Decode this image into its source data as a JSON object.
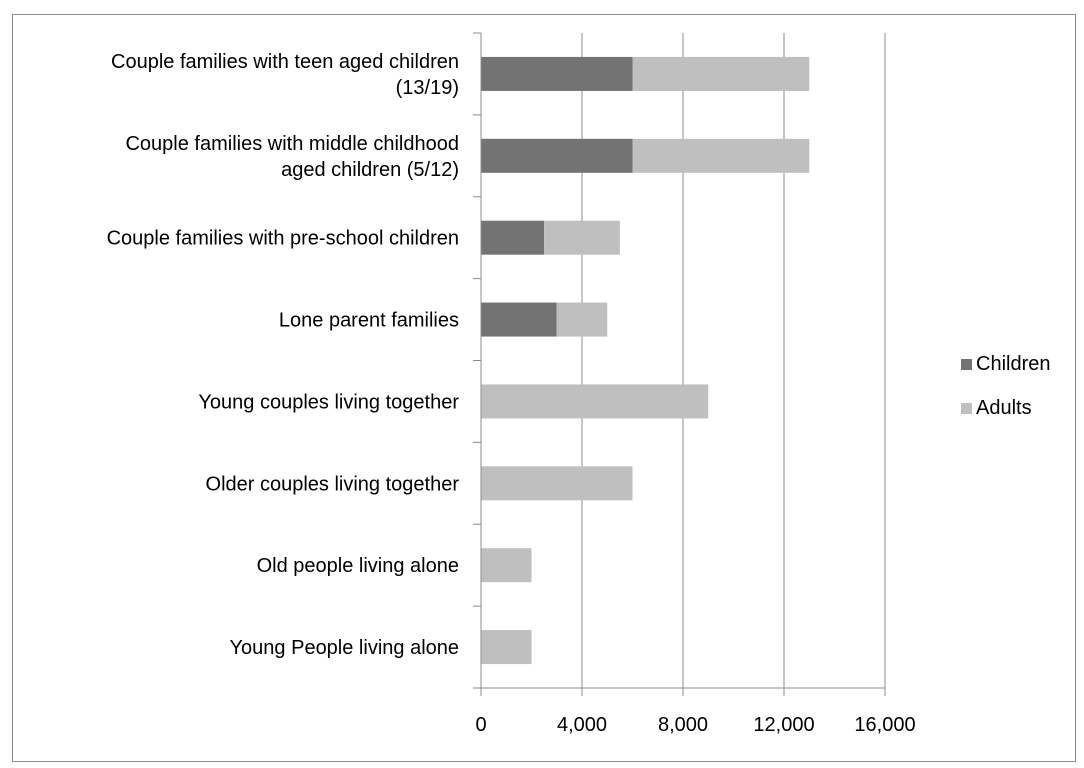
{
  "chart_data": {
    "type": "bar",
    "orientation": "horizontal",
    "stacked": true,
    "categories": [
      [
        "Couple families with teen aged children",
        "(13/19)"
      ],
      [
        "Couple families with middle childhood",
        "aged children (5/12)"
      ],
      [
        "Couple families with pre-school children"
      ],
      [
        "Lone parent families"
      ],
      [
        "Young couples living together"
      ],
      [
        "Older couples living together"
      ],
      [
        "Old people living alone"
      ],
      [
        "Young People living alone"
      ]
    ],
    "series": [
      {
        "name": "Children",
        "color": "#737373",
        "values": [
          6000,
          6000,
          2500,
          3000,
          0,
          0,
          0,
          0
        ]
      },
      {
        "name": "Adults",
        "color": "#bfbfbf",
        "values": [
          7000,
          7000,
          3000,
          2000,
          9000,
          6000,
          2000,
          2000
        ]
      }
    ],
    "xlim": [
      0,
      16000
    ],
    "xticks": [
      0,
      4000,
      8000,
      12000,
      16000
    ],
    "xtick_labels": [
      "0",
      "4,000",
      "8,000",
      "12,000",
      "16,000"
    ],
    "grid": "vertical",
    "legend_position": "right"
  }
}
